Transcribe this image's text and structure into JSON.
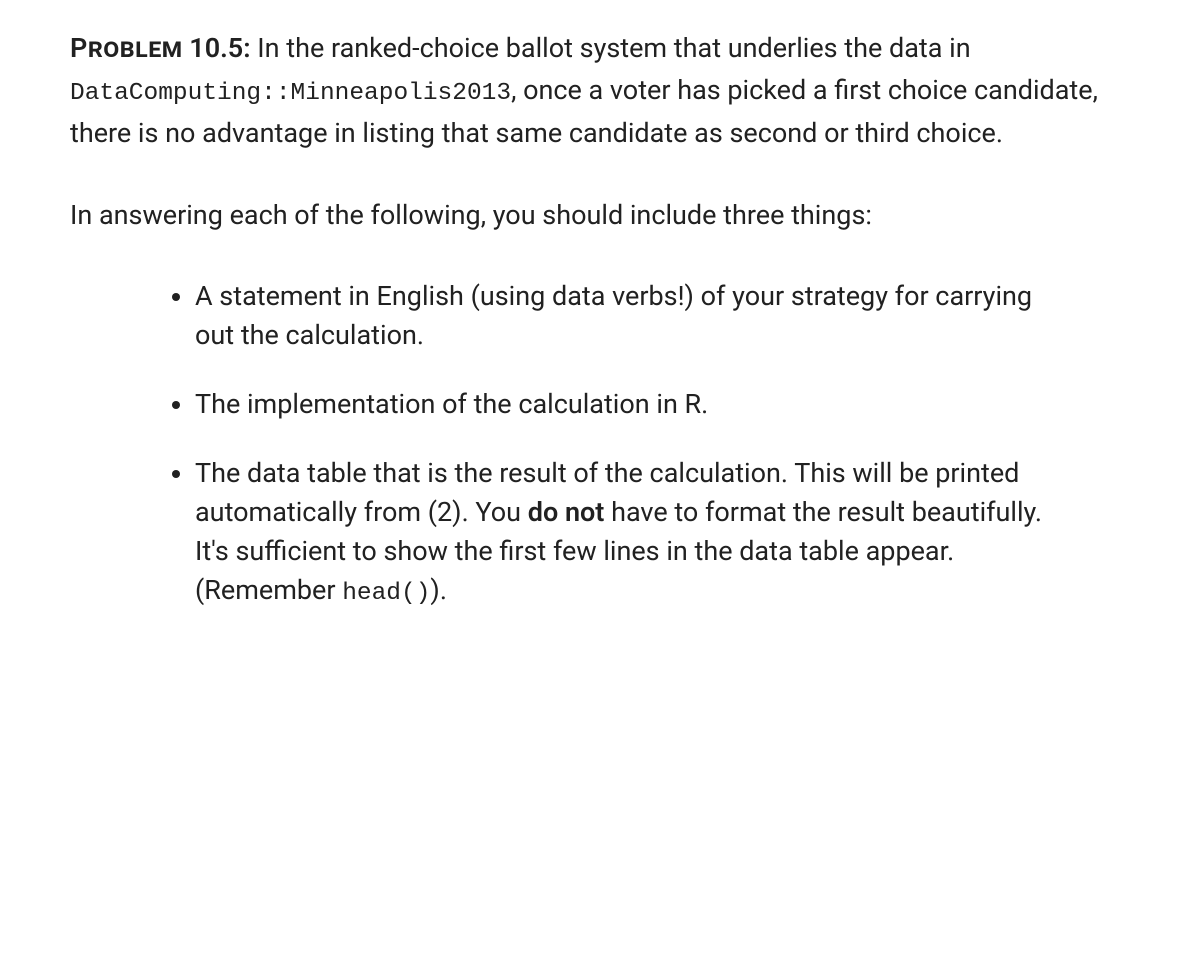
{
  "problem": {
    "label": "Problem",
    "number": "10.5:",
    "intro_before_code": " In the ranked-choice ballot system that underlies the data in ",
    "code_ref": "DataComputing::Minneapolis2013",
    "intro_after_code": ", once a voter has picked a first choice candidate, there is no advantage in listing that same candidate as second or third choice."
  },
  "instruction": "In answering each of the following, you should include three things:",
  "bullets": {
    "item1": "A statement in English (using data verbs!) of your strategy for carrying out the calculation.",
    "item2": "The implementation of the calculation in R.",
    "item3_part1": "The data table that is the result of the calculation. This will be printed automatically from (2). You ",
    "item3_bold": "do not",
    "item3_part2": " have to format the result beautifully. It's sufficient to show the first few lines in the data table appear. (Remember ",
    "item3_code": "head()",
    "item3_part3": ")."
  },
  "colors": {
    "text": "#212121",
    "background": "#ffffff"
  },
  "typography": {
    "body_fontsize": 27,
    "code_fontsize": 24.5,
    "line_height": 1.55
  }
}
